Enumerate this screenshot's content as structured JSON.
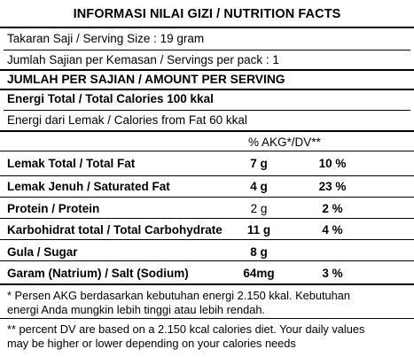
{
  "title": "INFORMASI NILAI GIZI / NUTRITION FACTS",
  "serving_size": "Takaran Saji / Serving Size : 19 gram",
  "servings_per_pack": "Jumlah Sajian per Kemasan / Servings per pack : 1",
  "amount_heading": "JUMLAH PER SAJIAN / AMOUNT PER SERVING",
  "total_energy": "Energi Total / Total Calories  100 kkal",
  "fat_energy": "Energi dari Lemak / Calories from Fat 60 kkal",
  "dv_heading": "% AKG*/DV**",
  "nutrients": [
    {
      "name": "Lemak Total / Total Fat",
      "amount": "7 g",
      "dv": "10 %",
      "bold_name": true,
      "bold_amount": true,
      "bold_dv": true
    },
    {
      "name": "Lemak Jenuh / Saturated Fat",
      "amount": "4 g",
      "dv": "23 %",
      "bold_name": true,
      "bold_amount": true,
      "bold_dv": true
    },
    {
      "name": "Protein / Protein",
      "amount": "2 g",
      "dv": "2 %",
      "bold_name": true,
      "bold_amount": false,
      "bold_dv": true
    },
    {
      "name": "Karbohidrat total / Total Carbohydrate",
      "amount": "11 g",
      "dv": "4 %",
      "bold_name": true,
      "bold_amount": true,
      "bold_dv": true
    },
    {
      "name": "Gula / Sugar",
      "amount": "8 g",
      "dv": "",
      "bold_name": true,
      "bold_amount": true,
      "bold_dv": false
    },
    {
      "name": "Garam (Natrium) / Salt (Sodium)",
      "amount": "64mg",
      "dv": "3 %",
      "bold_name": true,
      "bold_amount": true,
      "bold_dv": true
    }
  ],
  "footnote_1_line1": "* Persen AKG berdasarkan kebutuhan energi 2.150 kkal. Kebutuhan",
  "footnote_1_line2": "energi Anda mungkin lebih tinggi atau lebih rendah.",
  "footnote_2_line1": "** percent DV are based on a 2.150 kcal calories diet. Your daily values",
  "footnote_2_line2": "may be higher or lower depending on your calories needs"
}
